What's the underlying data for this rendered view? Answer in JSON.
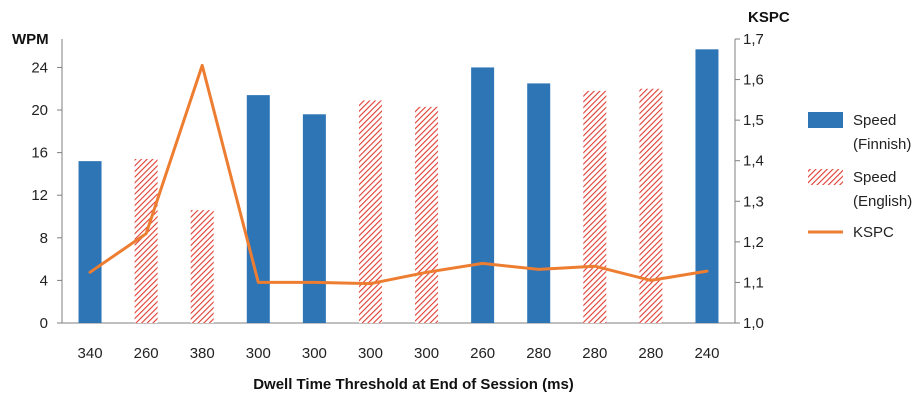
{
  "chart_data": {
    "type": "bar",
    "categories": [
      "340",
      "260",
      "380",
      "300",
      "300",
      "300",
      "300",
      "260",
      "280",
      "280",
      "280",
      "240"
    ],
    "xlabel": "Dwell Time Threshold at End of Session (ms)",
    "ylabel": "WPM",
    "y2label": "KSPC",
    "ylim": [
      0,
      26.67
    ],
    "y2lim": [
      1.0,
      1.7
    ],
    "yticks": [
      "0",
      "4",
      "8",
      "12",
      "16",
      "20",
      "24"
    ],
    "y2ticks": [
      "1,0",
      "1,1",
      "1,2",
      "1,3",
      "1,4",
      "1,5",
      "1,6",
      "1,7"
    ],
    "grid": false,
    "legend_position": "right",
    "series": [
      {
        "name": "Speed (Finnish)",
        "name_lines": [
          "Speed",
          "(Finnish)"
        ],
        "kind": "bar",
        "style": "solid",
        "color": "#2e75b6",
        "values": [
          15.2,
          null,
          null,
          21.4,
          19.6,
          null,
          null,
          24.0,
          22.5,
          null,
          null,
          25.7
        ]
      },
      {
        "name": "Speed (English)",
        "name_lines": [
          "Speed",
          "(English)"
        ],
        "kind": "bar",
        "style": "hatched",
        "color": "#e03c31",
        "values": [
          null,
          15.4,
          10.6,
          null,
          null,
          20.9,
          20.3,
          null,
          null,
          21.8,
          22.0,
          null
        ]
      },
      {
        "name": "KSPC",
        "name_lines": [
          "KSPC"
        ],
        "kind": "line",
        "axis": "right",
        "color": "#ed7d31",
        "values": [
          1.125,
          1.22,
          1.635,
          1.1,
          1.1,
          1.097,
          1.125,
          1.147,
          1.132,
          1.14,
          1.105,
          1.128
        ]
      }
    ]
  }
}
